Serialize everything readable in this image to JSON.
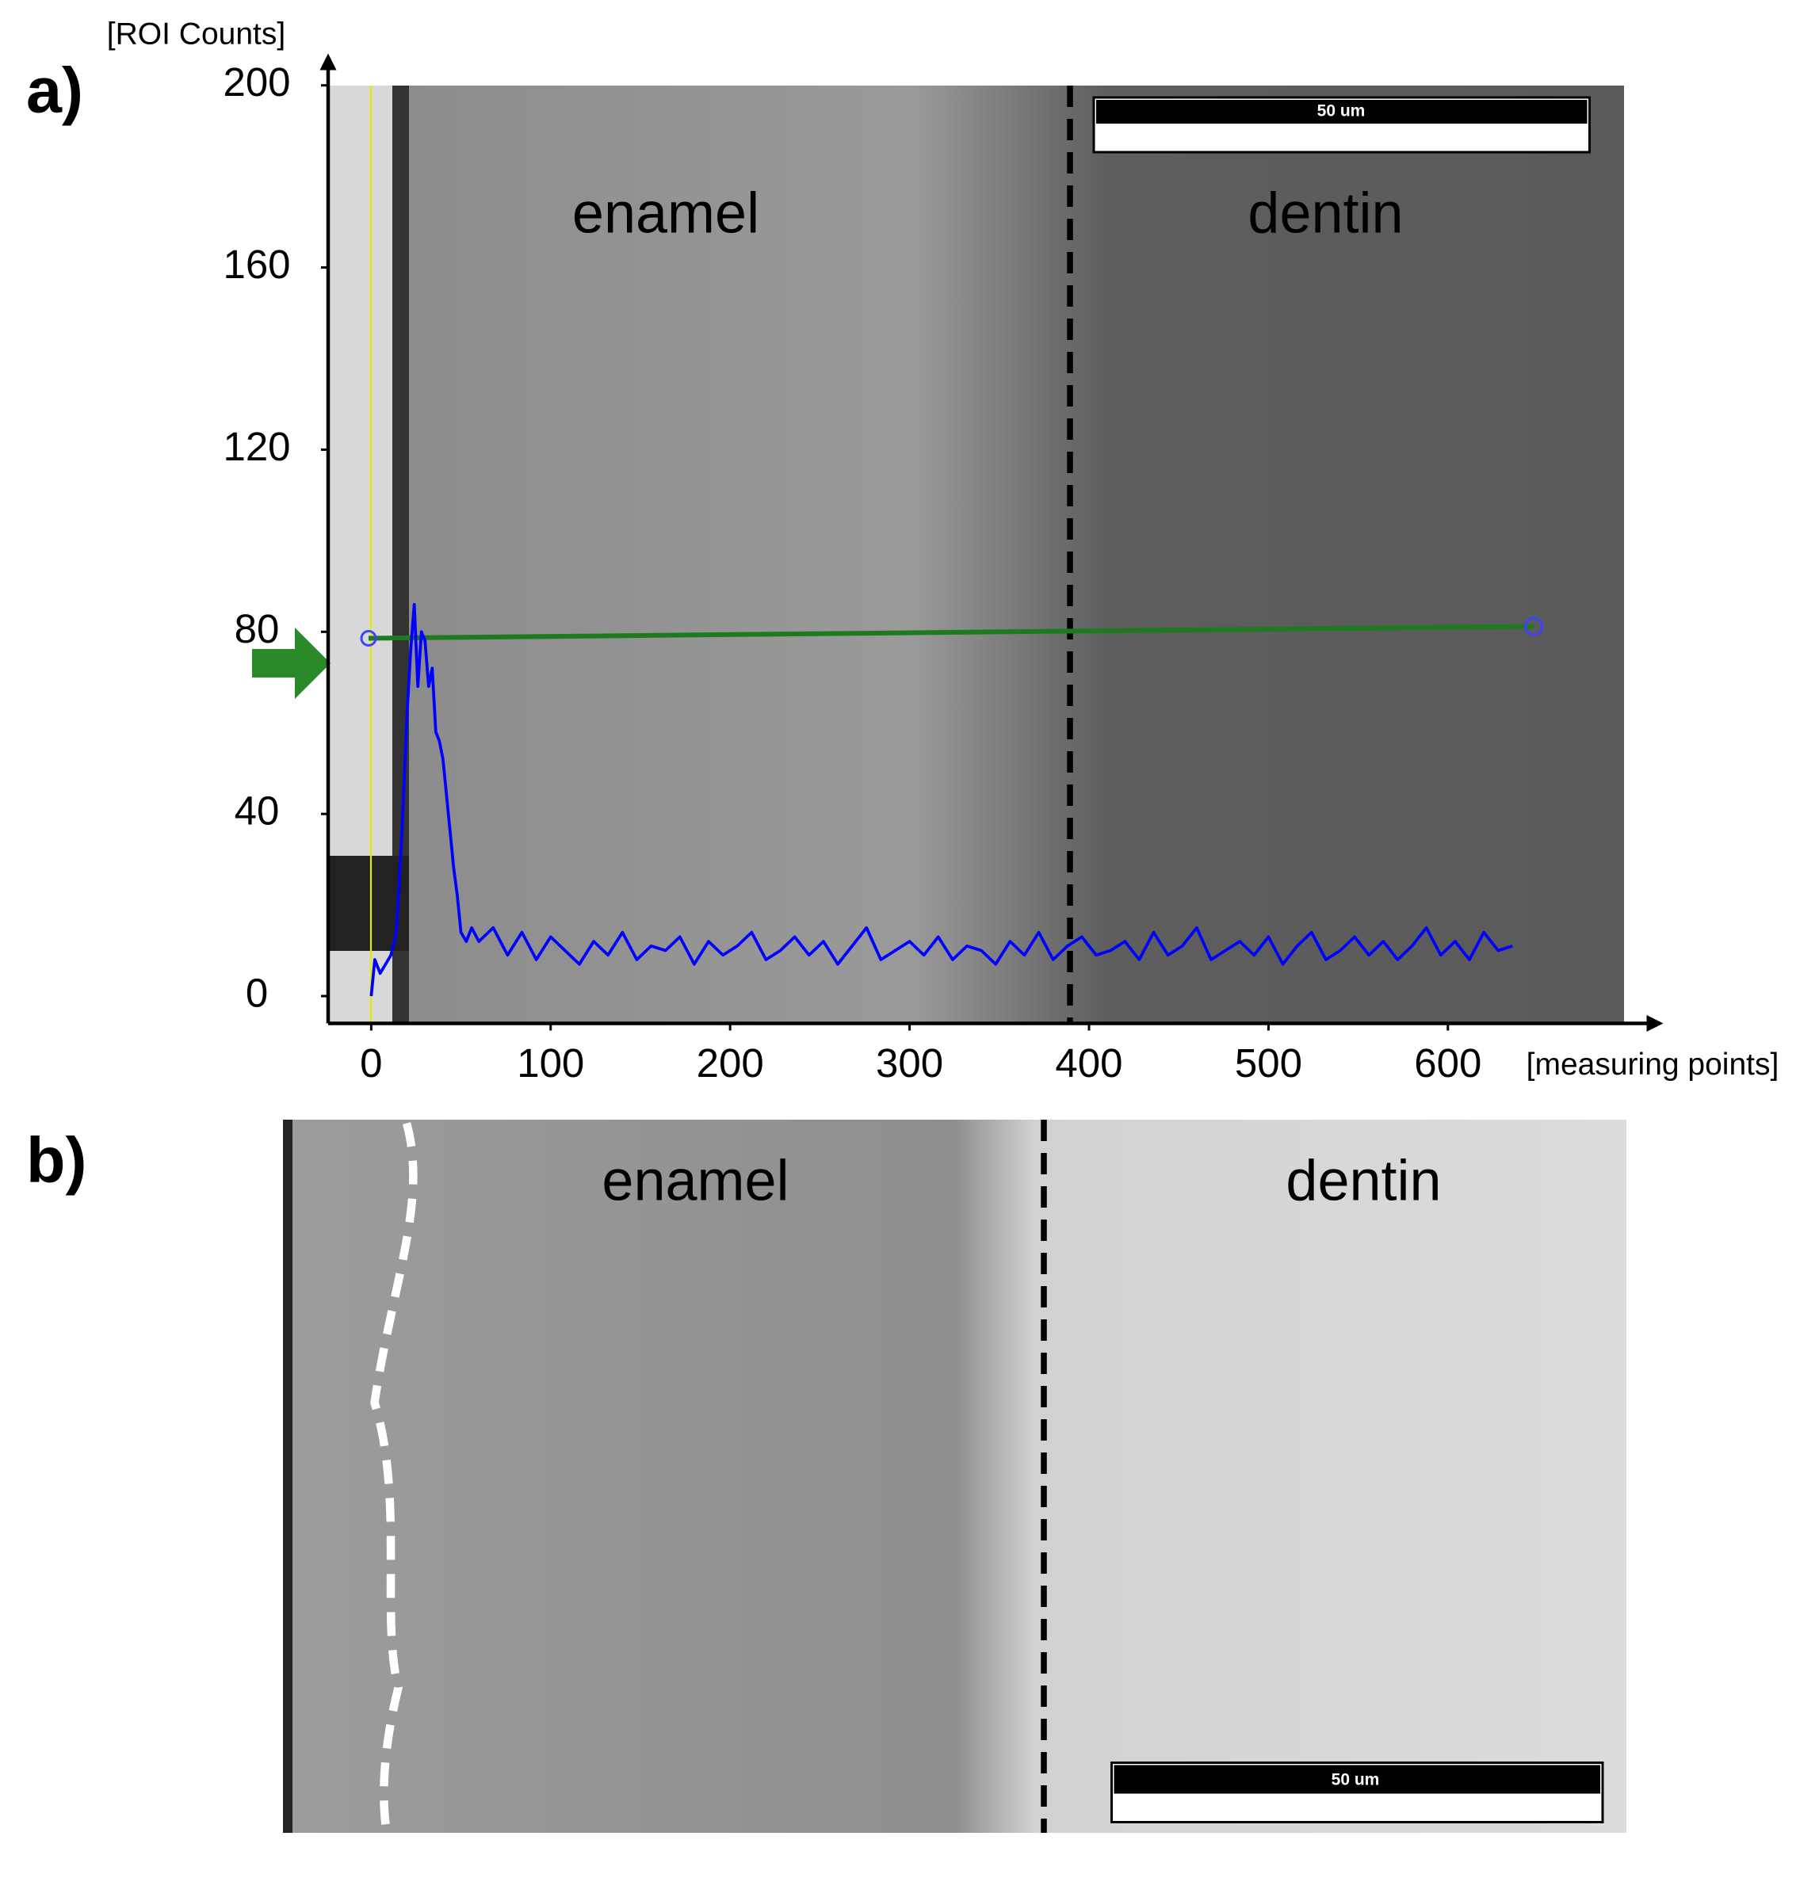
{
  "chart_data": {
    "type": "line",
    "panel_label": "a)",
    "y_label": "[ROI Counts]",
    "x_label": "[measuring points]",
    "annotations": [
      "enamel",
      "dentin"
    ],
    "scale_bar": "50 um",
    "color": "#0000ff",
    "x": [
      0,
      2,
      5,
      8,
      11,
      14,
      17,
      20,
      22,
      24,
      26,
      28,
      30,
      32,
      34,
      36,
      38,
      40,
      42,
      44,
      46,
      48,
      50,
      53,
      56,
      60,
      68,
      76,
      84,
      92,
      100,
      108,
      116,
      124,
      132,
      140,
      148,
      156,
      164,
      172,
      180,
      188,
      196,
      204,
      212,
      220,
      228,
      236,
      244,
      252,
      260,
      268,
      276,
      284,
      292,
      300,
      308,
      316,
      324,
      332,
      340,
      348,
      356,
      364,
      372,
      380,
      388,
      396,
      404,
      412,
      420,
      428,
      436,
      444,
      452,
      460,
      468,
      476,
      484,
      492,
      500,
      508,
      516,
      524,
      532,
      540,
      548,
      556,
      564,
      572,
      580,
      588,
      596,
      604,
      612,
      620,
      628,
      636
    ],
    "values": [
      0,
      8,
      5,
      7,
      9,
      14,
      35,
      62,
      76,
      86,
      68,
      80,
      78,
      68,
      72,
      58,
      56,
      52,
      44,
      36,
      28,
      22,
      14,
      12,
      15,
      12,
      15,
      9,
      14,
      8,
      13,
      10,
      7,
      12,
      9,
      14,
      8,
      11,
      10,
      13,
      7,
      12,
      9,
      11,
      14,
      8,
      10,
      13,
      9,
      12,
      7,
      11,
      15,
      8,
      10,
      12,
      9,
      13,
      8,
      11,
      10,
      7,
      12,
      9,
      14,
      8,
      11,
      13,
      9,
      10,
      12,
      8,
      14,
      9,
      11,
      15,
      8,
      10,
      12,
      9,
      13,
      7,
      11,
      14,
      8,
      10,
      13,
      9,
      12,
      8,
      11,
      15,
      9,
      12,
      8,
      14,
      10,
      11
    ],
    "xlim": [
      -24,
      720
    ],
    "ylim": [
      -6,
      207
    ],
    "xticks": [
      0,
      100,
      200,
      300,
      400,
      500,
      600
    ],
    "yticks": [
      0,
      40,
      80,
      120,
      160,
      200
    ]
  },
  "panel_b": {
    "label": "b)",
    "annotations": [
      "enamel",
      "dentin"
    ],
    "scale_bar": "50 um"
  }
}
